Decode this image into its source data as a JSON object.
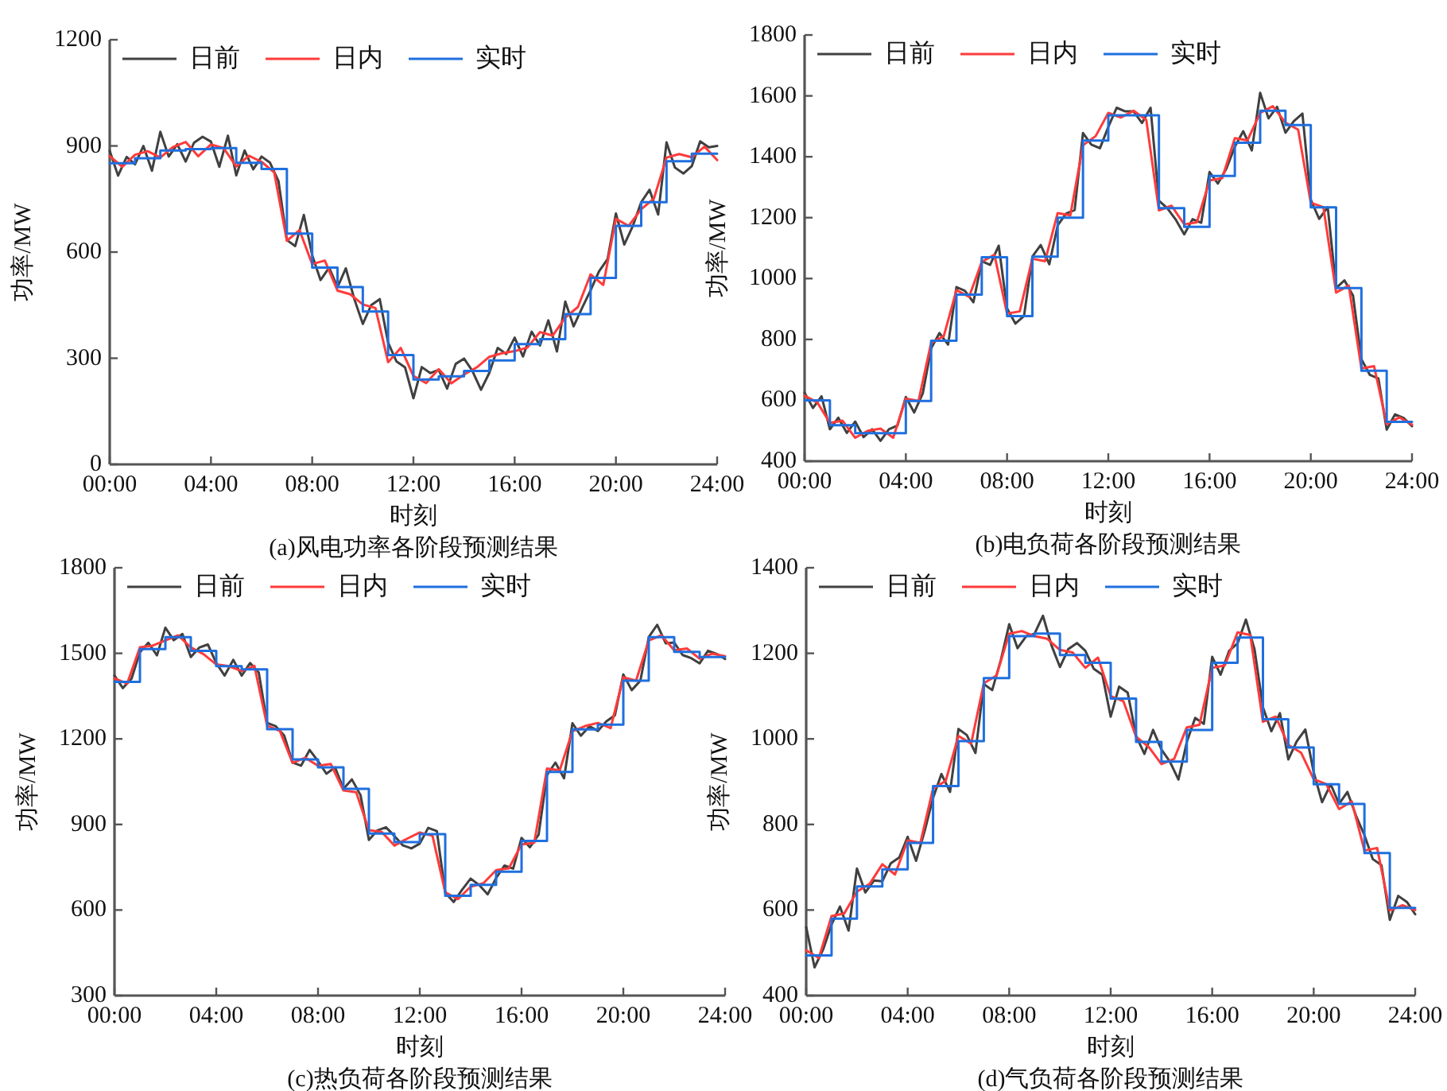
{
  "chart_data": [
    {
      "type": "line",
      "title": "(a)风电功率各阶段预测结果",
      "xlabel": "时刻",
      "ylabel": "功率/MW",
      "xlim": [
        0,
        24
      ],
      "xticks": [
        {
          "value": 0,
          "label": "00:00"
        },
        {
          "value": 4,
          "label": "04:00"
        },
        {
          "value": 8,
          "label": "08:00"
        },
        {
          "value": 12,
          "label": "12:00"
        },
        {
          "value": 16,
          "label": "16:00"
        },
        {
          "value": 20,
          "label": "20:00"
        },
        {
          "value": 24,
          "label": "24:00"
        }
      ],
      "ylim": [
        0,
        1200
      ],
      "yticks": [
        0,
        300,
        600,
        900,
        1200
      ],
      "legend": "top left",
      "series": [
        {
          "name": "日前",
          "color": "#404040",
          "type": "line",
          "x": [
            0,
            0.33,
            0.67,
            1,
            1.33,
            1.67,
            2,
            2.33,
            2.67,
            3,
            3.33,
            3.67,
            4,
            4.33,
            4.67,
            5,
            5.33,
            5.67,
            6,
            6.33,
            6.67,
            7,
            7.33,
            7.67,
            8,
            8.33,
            8.67,
            9,
            9.33,
            9.67,
            10,
            10.33,
            10.67,
            11,
            11.33,
            11.67,
            12,
            12.33,
            12.67,
            13,
            13.33,
            13.67,
            14,
            14.33,
            14.67,
            15,
            15.33,
            15.67,
            16,
            16.33,
            16.67,
            17,
            17.33,
            17.67,
            18,
            18.33,
            18.67,
            19,
            19.33,
            19.67,
            20,
            20.33,
            20.67,
            21,
            21.33,
            21.67,
            22,
            22.33,
            22.67,
            23,
            23.33,
            23.67,
            24
          ],
          "values": [
            886,
            816,
            869,
            848,
            900,
            830,
            940,
            870,
            905,
            856,
            909,
            926,
            912,
            841,
            929,
            817,
            887,
            834,
            870,
            853,
            800,
            634,
            617,
            705,
            591,
            521,
            556,
            501,
            554,
            466,
            397,
            450,
            467,
            344,
            291,
            274,
            187,
            275,
            258,
            267,
            214,
            284,
            299,
            264,
            211,
            259,
            329,
            312,
            358,
            305,
            375,
            336,
            407,
            319,
            460,
            390,
            443,
            492,
            545,
            580,
            709,
            621,
            674,
            741,
            776,
            706,
            910,
            839,
            822,
            843,
            913,
            896,
            900
          ]
        },
        {
          "name": "日内",
          "color": "#ff3b3b",
          "type": "line",
          "x": [
            0,
            0.5,
            1,
            1.5,
            2,
            2.5,
            3,
            3.5,
            4,
            4.5,
            5,
            5.5,
            6,
            6.5,
            7,
            7.5,
            8,
            8.5,
            9,
            9.5,
            10,
            10.5,
            11,
            11.5,
            12,
            12.5,
            13,
            13.5,
            14,
            14.5,
            15,
            15.5,
            16,
            16.5,
            17,
            17.5,
            18,
            18.5,
            19,
            19.5,
            20,
            20.5,
            21,
            21.5,
            22,
            22.5,
            23,
            23.5,
            24
          ],
          "values": [
            871,
            841,
            875,
            885,
            867,
            897,
            911,
            871,
            904,
            894,
            842,
            872,
            855,
            825,
            632,
            662,
            566,
            576,
            491,
            481,
            452,
            442,
            289,
            329,
            250,
            230,
            269,
            229,
            254,
            274,
            304,
            314,
            320,
            330,
            374,
            364,
            415,
            445,
            537,
            507,
            694,
            674,
            721,
            751,
            867,
            877,
            868,
            898,
            860
          ]
        },
        {
          "name": "实时",
          "color": "#1f6fdf",
          "type": "step",
          "x": [
            0,
            1,
            2,
            3,
            4,
            5,
            6,
            7,
            8,
            9,
            10,
            11,
            12,
            13,
            14,
            15,
            16,
            17,
            18,
            19,
            20,
            21,
            22,
            23,
            24
          ],
          "values": [
            851,
            865,
            887,
            891,
            894,
            852,
            835,
            652,
            556,
            501,
            432,
            309,
            240,
            249,
            264,
            294,
            340,
            354,
            425,
            527,
            674,
            741,
            857,
            878,
            878
          ]
        }
      ]
    },
    {
      "type": "line",
      "title": "(b)电负荷各阶段预测结果",
      "xlabel": "时刻",
      "ylabel": "功率/MW",
      "xlim": [
        0,
        24
      ],
      "xticks": [
        {
          "value": 0,
          "label": "00:00"
        },
        {
          "value": 4,
          "label": "04:00"
        },
        {
          "value": 8,
          "label": "08:00"
        },
        {
          "value": 12,
          "label": "12:00"
        },
        {
          "value": 16,
          "label": "16:00"
        },
        {
          "value": 20,
          "label": "20:00"
        },
        {
          "value": 24,
          "label": "24:00"
        }
      ],
      "ylim": [
        400,
        1800
      ],
      "yticks": [
        400,
        600,
        800,
        1000,
        1200,
        1400,
        1600,
        1800
      ],
      "legend": "top left",
      "series": [
        {
          "name": "日前",
          "color": "#404040",
          "type": "line",
          "x": [
            0,
            0.33,
            0.67,
            1,
            1.33,
            1.67,
            2,
            2.33,
            2.67,
            3,
            3.33,
            3.67,
            4,
            4.33,
            4.67,
            5,
            5.33,
            5.67,
            6,
            6.33,
            6.67,
            7,
            7.33,
            7.67,
            8,
            8.33,
            8.67,
            9,
            9.33,
            9.67,
            10,
            10.33,
            10.67,
            11,
            11.33,
            11.67,
            12,
            12.33,
            12.67,
            13,
            13.33,
            13.67,
            14,
            14.33,
            14.67,
            15,
            15.33,
            15.67,
            16,
            16.33,
            16.67,
            17,
            17.33,
            17.67,
            18,
            18.33,
            18.67,
            19,
            19.33,
            19.67,
            20,
            20.33,
            20.67,
            21,
            21.33,
            21.67,
            22,
            22.33,
            22.67,
            23,
            23.33,
            23.67,
            24
          ],
          "values": [
            625,
            575,
            613,
            505,
            543,
            493,
            530,
            479,
            505,
            467,
            505,
            517,
            611,
            560,
            623,
            771,
            821,
            783,
            972,
            960,
            922,
            1057,
            1045,
            1108,
            902,
            852,
            877,
            1072,
            1110,
            1047,
            1175,
            1213,
            1225,
            1478,
            1440,
            1428,
            1498,
            1561,
            1549,
            1549,
            1511,
            1561,
            1256,
            1231,
            1193,
            1145,
            1195,
            1183,
            1350,
            1312,
            1362,
            1433,
            1484,
            1421,
            1610,
            1526,
            1564,
            1479,
            1517,
            1542,
            1259,
            1196,
            1234,
            969,
            994,
            944,
            735,
            684,
            672,
            504,
            554,
            542,
            515
          ]
        },
        {
          "name": "日内",
          "color": "#ff3b3b",
          "type": "line",
          "x": [
            0,
            0.5,
            1,
            1.5,
            2,
            2.5,
            3,
            3.5,
            4,
            4.5,
            5,
            5.5,
            6,
            6.5,
            7,
            7.5,
            8,
            8.5,
            9,
            9.5,
            10,
            10.5,
            11,
            11.5,
            12,
            12.5,
            13,
            13.5,
            14,
            14.5,
            15,
            15.5,
            16,
            16.5,
            17,
            17.5,
            18,
            18.5,
            19,
            19.5,
            20,
            20.5,
            21,
            21.5,
            22,
            22.5,
            23,
            23.5,
            24
          ],
          "values": [
            615,
            593,
            526,
            533,
            477,
            500,
            507,
            477,
            606,
            598,
            789,
            811,
            962,
            940,
            1055,
            1078,
            885,
            892,
            1065,
            1057,
            1215,
            1208,
            1438,
            1468,
            1544,
            1529,
            1551,
            1521,
            1224,
            1239,
            1178,
            1185,
            1322,
            1330,
            1461,
            1454,
            1544,
            1566,
            1512,
            1489,
            1249,
            1234,
            954,
            977,
            705,
            712,
            522,
            544,
            520
          ]
        },
        {
          "name": "实时",
          "color": "#1f6fdf",
          "type": "step",
          "x": [
            0,
            1,
            2,
            3,
            4,
            5,
            6,
            7,
            8,
            9,
            10,
            11,
            12,
            13,
            14,
            15,
            16,
            17,
            18,
            19,
            20,
            21,
            22,
            23,
            24
          ],
          "values": [
            600,
            518,
            492,
            492,
            598,
            796,
            947,
            1070,
            877,
            1072,
            1200,
            1453,
            1536,
            1536,
            1231,
            1170,
            1337,
            1446,
            1551,
            1504,
            1234,
            969,
            697,
            529,
            529
          ]
        }
      ]
    },
    {
      "type": "line",
      "title": "(c)热负荷各阶段预测结果",
      "xlabel": "时刻",
      "ylabel": "功率/MW",
      "xlim": [
        0,
        24
      ],
      "xticks": [
        {
          "value": 0,
          "label": "00:00"
        },
        {
          "value": 4,
          "label": "04:00"
        },
        {
          "value": 8,
          "label": "08:00"
        },
        {
          "value": 12,
          "label": "12:00"
        },
        {
          "value": 16,
          "label": "16:00"
        },
        {
          "value": 20,
          "label": "20:00"
        },
        {
          "value": 24,
          "label": "24:00"
        }
      ],
      "ylim": [
        300,
        1800
      ],
      "yticks": [
        300,
        600,
        900,
        1200,
        1500,
        1800
      ],
      "legend": "top left",
      "series": [
        {
          "name": "日前",
          "color": "#404040",
          "type": "line",
          "x": [
            0,
            0.33,
            0.67,
            1,
            1.33,
            1.67,
            2,
            2.33,
            2.67,
            3,
            3.33,
            3.67,
            4,
            4.33,
            4.67,
            5,
            5.33,
            5.67,
            6,
            6.33,
            6.67,
            7,
            7.33,
            7.67,
            8,
            8.33,
            8.67,
            9,
            9.33,
            9.67,
            10,
            10.33,
            10.67,
            11,
            11.33,
            11.67,
            12,
            12.33,
            12.67,
            13,
            13.33,
            13.67,
            14,
            14.33,
            14.67,
            15,
            15.33,
            15.67,
            16,
            16.33,
            16.67,
            17,
            17.33,
            17.67,
            18,
            18.33,
            18.67,
            19,
            19.33,
            19.67,
            20,
            20.33,
            20.67,
            21,
            21.33,
            21.67,
            22,
            22.33,
            22.67,
            23,
            23.33,
            23.67,
            24
          ],
          "values": [
            1422,
            1378,
            1411,
            1504,
            1537,
            1493,
            1590,
            1546,
            1568,
            1487,
            1520,
            1531,
            1466,
            1422,
            1477,
            1422,
            1466,
            1433,
            1256,
            1245,
            1212,
            1117,
            1106,
            1161,
            1122,
            1078,
            1100,
            1025,
            1058,
            1003,
            846,
            879,
            890,
            860,
            827,
            816,
            833,
            888,
            877,
            661,
            628,
            672,
            710,
            688,
            655,
            712,
            756,
            745,
            853,
            820,
            864,
            1073,
            1117,
            1062,
            1255,
            1211,
            1244,
            1228,
            1261,
            1283,
            1426,
            1371,
            1404,
            1557,
            1600,
            1535,
            1538,
            1494,
            1483,
            1465,
            1509,
            1498,
            1480
          ]
        },
        {
          "name": "日内",
          "color": "#ff3b3b",
          "type": "line",
          "x": [
            0,
            0.5,
            1,
            1.5,
            2,
            2.5,
            3,
            3.5,
            4,
            4.5,
            5,
            5.5,
            6,
            6.5,
            7,
            7.5,
            8,
            8.5,
            9,
            9.5,
            10,
            10.5,
            11,
            11.5,
            12,
            12.5,
            13,
            13.5,
            14,
            14.5,
            15,
            15.5,
            16,
            16.5,
            17,
            17.5,
            18,
            18.5,
            19,
            19.5,
            20,
            20.5,
            21,
            21.5,
            22,
            22.5,
            23,
            23.5,
            24
          ],
          "values": [
            1412,
            1394,
            1521,
            1527,
            1545,
            1563,
            1521,
            1497,
            1461,
            1455,
            1438,
            1456,
            1246,
            1228,
            1116,
            1134,
            1106,
            1112,
            1019,
            1013,
            880,
            874,
            826,
            850,
            872,
            860,
            662,
            638,
            682,
            694,
            740,
            746,
            830,
            836,
            1096,
            1090,
            1227,
            1245,
            1256,
            1238,
            1416,
            1404,
            1545,
            1563,
            1511,
            1517,
            1481,
            1499,
            1490
          ]
        },
        {
          "name": "实时",
          "color": "#1f6fdf",
          "type": "step",
          "x": [
            0,
            1,
            2,
            3,
            4,
            5,
            6,
            7,
            8,
            9,
            10,
            11,
            12,
            13,
            14,
            15,
            16,
            17,
            18,
            19,
            20,
            21,
            22,
            23,
            24
          ],
          "values": [
            1400,
            1515,
            1557,
            1509,
            1455,
            1444,
            1234,
            1128,
            1100,
            1025,
            868,
            838,
            866,
            650,
            688,
            734,
            842,
            1084,
            1233,
            1250,
            1404,
            1557,
            1505,
            1487,
            1487
          ]
        }
      ]
    },
    {
      "type": "line",
      "title": "(d)气负荷各阶段预测结果",
      "xlabel": "时刻",
      "ylabel": "功率/MW",
      "xlim": [
        0,
        24
      ],
      "xticks": [
        {
          "value": 0,
          "label": "00:00"
        },
        {
          "value": 4,
          "label": "04:00"
        },
        {
          "value": 8,
          "label": "08:00"
        },
        {
          "value": 12,
          "label": "12:00"
        },
        {
          "value": 16,
          "label": "16:00"
        },
        {
          "value": 20,
          "label": "20:00"
        },
        {
          "value": 24,
          "label": "24:00"
        }
      ],
      "ylim": [
        400,
        1400
      ],
      "yticks": [
        400,
        600,
        800,
        1000,
        1200,
        1400
      ],
      "legend": "top left",
      "series": [
        {
          "name": "日前",
          "color": "#404040",
          "type": "line",
          "x": [
            0,
            0.33,
            0.67,
            1,
            1.33,
            1.67,
            2,
            2.33,
            2.67,
            3,
            3.33,
            3.67,
            4,
            4.33,
            4.67,
            5,
            5.33,
            5.67,
            6,
            6.33,
            6.67,
            7,
            7.33,
            7.67,
            8,
            8.33,
            8.67,
            9,
            9.33,
            9.67,
            10,
            10.33,
            10.67,
            11,
            11.33,
            11.67,
            12,
            12.33,
            12.67,
            13,
            13.33,
            13.67,
            14,
            14.33,
            14.67,
            15,
            15.33,
            15.67,
            16,
            16.33,
            16.67,
            17,
            17.33,
            17.67,
            18,
            18.33,
            18.67,
            19,
            19.33,
            19.67,
            20,
            20.33,
            20.67,
            21,
            21.33,
            21.67,
            22,
            22.33,
            22.67,
            23,
            23.33,
            23.67,
            24
          ],
          "values": [
            560,
            466,
            508,
            566,
            608,
            552,
            697,
            641,
            669,
            667,
            709,
            723,
            771,
            715,
            785,
            862,
            918,
            876,
            1023,
            1009,
            967,
            1128,
            1114,
            1184,
            1268,
            1212,
            1240,
            1246,
            1288,
            1218,
            1168,
            1210,
            1224,
            1206,
            1164,
            1150,
            1052,
            1122,
            1108,
            1007,
            965,
            1021,
            975,
            947,
            905,
            993,
            1049,
            1035,
            1192,
            1150,
            1206,
            1223,
            1279,
            1209,
            1074,
            1018,
            1060,
            952,
            994,
            1022,
            922,
            852,
            894,
            848,
            876,
            820,
            775,
            719,
            705,
            577,
            633,
            619,
            590
          ]
        },
        {
          "name": "日内",
          "color": "#ff3b3b",
          "type": "line",
          "x": [
            0,
            0.5,
            1,
            1.5,
            2,
            2.5,
            3,
            3.5,
            4,
            4.5,
            5,
            5.5,
            6,
            6.5,
            7,
            7.5,
            8,
            8.5,
            9,
            9.5,
            10,
            10.5,
            11,
            11.5,
            12,
            12.5,
            13,
            13.5,
            14,
            14.5,
            15,
            15.5,
            16,
            16.5,
            17,
            17.5,
            18,
            18.5,
            19,
            19.5,
            20,
            20.5,
            21,
            21.5,
            22,
            22.5,
            23,
            23.5,
            24
          ],
          "values": [
            506,
            488,
            586,
            592,
            643,
            661,
            707,
            683,
            763,
            757,
            884,
            902,
            1007,
            989,
            1130,
            1148,
            1246,
            1252,
            1240,
            1234,
            1208,
            1202,
            1166,
            1190,
            1100,
            1088,
            1005,
            981,
            941,
            953,
            1027,
            1033,
            1166,
            1172,
            1249,
            1243,
            1040,
            1052,
            986,
            968,
            906,
            894,
            836,
            854,
            739,
            745,
            599,
            611,
            600
          ]
        },
        {
          "name": "实时",
          "color": "#1f6fdf",
          "type": "step",
          "x": [
            0,
            1,
            2,
            3,
            4,
            5,
            6,
            7,
            8,
            9,
            10,
            11,
            12,
            13,
            14,
            15,
            16,
            17,
            18,
            19,
            20,
            21,
            22,
            23,
            24
          ],
          "values": [
            494,
            580,
            655,
            695,
            757,
            890,
            995,
            1142,
            1240,
            1246,
            1196,
            1178,
            1094,
            993,
            947,
            1021,
            1178,
            1237,
            1046,
            980,
            894,
            848,
            733,
            605,
            605
          ]
        }
      ]
    }
  ]
}
